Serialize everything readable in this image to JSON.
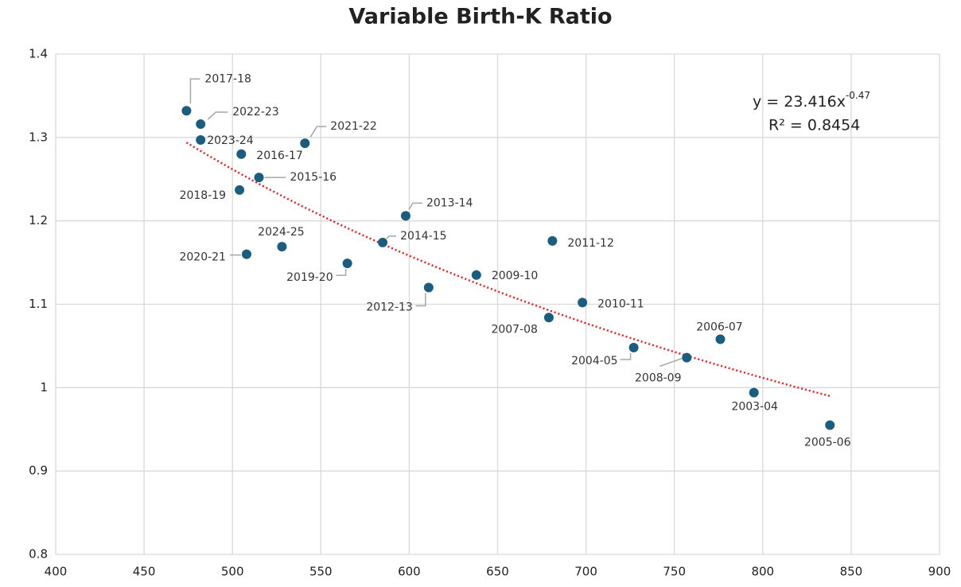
{
  "chart_data": {
    "type": "scatter",
    "title": "Variable Birth-K Ratio",
    "series": [
      {
        "color": "#1b5d7e",
        "labels": [
          "2017-18",
          "2022-23",
          "2023-24",
          "2016-17",
          "2021-22",
          "2015-16",
          "2018-19",
          "2013-14",
          "2014-15",
          "2011-12",
          "2020-21",
          "2024-25",
          "2019-20",
          "2009-10",
          "2012-13",
          "2010-11",
          "2007-08",
          "2006-07",
          "2004-05",
          "2008-09",
          "2003-04",
          "2005-06"
        ],
        "x": [
          474,
          482,
          482,
          505,
          541,
          515,
          504,
          598,
          585,
          681,
          508,
          528,
          565,
          638,
          611,
          698,
          679,
          776,
          727,
          757,
          795,
          838
        ],
        "values": [
          1.332,
          1.316,
          1.297,
          1.28,
          1.293,
          1.252,
          1.237,
          1.206,
          1.174,
          1.176,
          1.16,
          1.169,
          1.149,
          1.135,
          1.12,
          1.102,
          1.084,
          1.058,
          1.048,
          1.036,
          0.994,
          0.955
        ]
      }
    ],
    "trendline": {
      "type": "power",
      "coefficient": 23.416,
      "exponent": -0.47,
      "color": "#e8201c"
    },
    "annotations": {
      "equation": "y = 23.416x",
      "equation_exponent": "-0.47",
      "r_squared": "R² = 0.8454"
    },
    "xlim": [
      400,
      900
    ],
    "xticks": [
      400,
      450,
      500,
      550,
      600,
      650,
      700,
      750,
      800,
      850,
      900
    ],
    "ylim": [
      0.8,
      1.4
    ],
    "yticks": [
      0.8,
      0.9,
      1,
      1.1,
      1.2,
      1.3,
      1.4
    ],
    "grid": true
  }
}
